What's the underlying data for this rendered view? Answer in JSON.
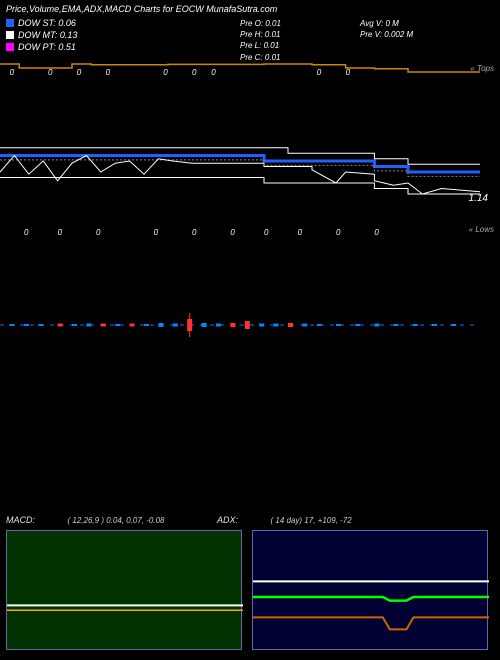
{
  "title": "Price,Volume,EMA,ADX,MACD Charts for EOCW MunafaSutra.com",
  "colors": {
    "bg": "#000000",
    "text": "#ffffff",
    "dow_st": "#2060ff",
    "dow_mt": "#ffffff",
    "dow_pt": "#ff00ff",
    "orange_line": "#cc8800",
    "price_line": "#ffffff",
    "dotted": "#888888",
    "candle_up": "#0088ff",
    "candle_dn": "#ff3333",
    "macd_bg": "#003300",
    "adx_bg": "#000033",
    "panel_border": "#6666aa",
    "macd_line1": "#ffffff",
    "macd_line2": "#ffaa00",
    "adx_green": "#00ff00",
    "adx_white": "#ffffff",
    "adx_orange": "#cc6600"
  },
  "legend": {
    "st": {
      "label": "DOW ST:",
      "value": "0.06"
    },
    "mt": {
      "label": "DOW MT:",
      "value": "0.13"
    },
    "pt": {
      "label": "DOW PT:",
      "value": "0.51"
    }
  },
  "stats_mid": {
    "l1": "Pre   O: 0.01",
    "l2": "Pre   H: 0.01",
    "l3": "Pre   L: 0.01",
    "l4": "Pre   C: 0.01"
  },
  "stats_right": {
    "l1": "Avg V: 0  M",
    "l2": "Pre   V: 0.002  M"
  },
  "axis_labels": {
    "top": "« Tops",
    "bottom": "« Lows"
  },
  "price_marker": "1.14",
  "orange_line": {
    "y_start": 0.08,
    "y_end": 0.35,
    "points": [
      [
        0.0,
        0.1
      ],
      [
        0.04,
        0.1
      ],
      [
        0.04,
        0.2
      ],
      [
        0.15,
        0.2
      ],
      [
        0.15,
        0.1
      ],
      [
        0.19,
        0.1
      ],
      [
        0.19,
        0.12
      ],
      [
        0.35,
        0.12
      ],
      [
        0.35,
        0.11
      ],
      [
        0.55,
        0.11
      ],
      [
        0.55,
        0.1
      ],
      [
        0.65,
        0.1
      ],
      [
        0.65,
        0.12
      ],
      [
        0.72,
        0.12
      ],
      [
        0.72,
        0.2
      ],
      [
        0.78,
        0.2
      ],
      [
        0.78,
        0.22
      ],
      [
        0.85,
        0.22
      ],
      [
        0.85,
        0.3
      ],
      [
        1.0,
        0.3
      ]
    ]
  },
  "main_lines": {
    "white_top": [
      [
        0.0,
        0.48
      ],
      [
        0.6,
        0.48
      ],
      [
        0.6,
        0.53
      ],
      [
        0.78,
        0.53
      ],
      [
        0.78,
        0.58
      ],
      [
        0.85,
        0.58
      ],
      [
        0.85,
        0.63
      ],
      [
        1.0,
        0.63
      ]
    ],
    "blue": [
      [
        0.0,
        0.55
      ],
      [
        0.55,
        0.55
      ],
      [
        0.55,
        0.6
      ],
      [
        0.78,
        0.6
      ],
      [
        0.78,
        0.65
      ],
      [
        0.85,
        0.65
      ],
      [
        0.85,
        0.7
      ],
      [
        1.0,
        0.7
      ]
    ],
    "jagged": [
      [
        0.0,
        0.7
      ],
      [
        0.03,
        0.55
      ],
      [
        0.06,
        0.72
      ],
      [
        0.09,
        0.6
      ],
      [
        0.12,
        0.78
      ],
      [
        0.15,
        0.62
      ],
      [
        0.18,
        0.55
      ],
      [
        0.21,
        0.7
      ],
      [
        0.24,
        0.62
      ],
      [
        0.27,
        0.6
      ],
      [
        0.3,
        0.72
      ],
      [
        0.33,
        0.58
      ],
      [
        0.36,
        0.6
      ],
      [
        0.4,
        0.62
      ],
      [
        0.5,
        0.62
      ],
      [
        0.55,
        0.62
      ],
      [
        0.55,
        0.65
      ],
      [
        0.65,
        0.65
      ],
      [
        0.65,
        0.68
      ],
      [
        0.7,
        0.8
      ],
      [
        0.72,
        0.7
      ],
      [
        0.78,
        0.72
      ],
      [
        0.78,
        0.78
      ],
      [
        0.82,
        0.82
      ],
      [
        0.85,
        0.8
      ],
      [
        0.88,
        0.9
      ],
      [
        0.92,
        0.85
      ],
      [
        1.0,
        0.88
      ]
    ],
    "white_bot": [
      [
        0.0,
        0.75
      ],
      [
        0.55,
        0.75
      ],
      [
        0.55,
        0.8
      ],
      [
        0.78,
        0.8
      ],
      [
        0.78,
        0.85
      ],
      [
        0.85,
        0.85
      ],
      [
        0.85,
        0.9
      ],
      [
        1.0,
        0.9
      ]
    ]
  },
  "zeros_top": [
    0.02,
    0.1,
    0.16,
    0.22,
    0.34,
    0.4,
    0.44,
    0.66,
    0.72
  ],
  "zeros_bot": [
    0.05,
    0.12,
    0.2,
    0.32,
    0.4,
    0.48,
    0.55,
    0.62,
    0.7,
    0.78
  ],
  "candles": [
    {
      "x": 0.02,
      "h": 2,
      "c": "b"
    },
    {
      "x": 0.05,
      "h": 2,
      "c": "b"
    },
    {
      "x": 0.08,
      "h": 2,
      "c": "b"
    },
    {
      "x": 0.12,
      "h": 3,
      "c": "r"
    },
    {
      "x": 0.15,
      "h": 2,
      "c": "b"
    },
    {
      "x": 0.18,
      "h": 3,
      "c": "b"
    },
    {
      "x": 0.21,
      "h": 3,
      "c": "r"
    },
    {
      "x": 0.24,
      "h": 2,
      "c": "b"
    },
    {
      "x": 0.27,
      "h": 3,
      "c": "r"
    },
    {
      "x": 0.3,
      "h": 2,
      "c": "b"
    },
    {
      "x": 0.33,
      "h": 4,
      "c": "b"
    },
    {
      "x": 0.36,
      "h": 3,
      "c": "b"
    },
    {
      "x": 0.39,
      "h": 12,
      "c": "r",
      "wick": 6
    },
    {
      "x": 0.42,
      "h": 4,
      "c": "b"
    },
    {
      "x": 0.45,
      "h": 3,
      "c": "b"
    },
    {
      "x": 0.48,
      "h": 4,
      "c": "r"
    },
    {
      "x": 0.51,
      "h": 8,
      "c": "r"
    },
    {
      "x": 0.54,
      "h": 3,
      "c": "b"
    },
    {
      "x": 0.57,
      "h": 3,
      "c": "b"
    },
    {
      "x": 0.6,
      "h": 4,
      "c": "r"
    },
    {
      "x": 0.63,
      "h": 3,
      "c": "b"
    },
    {
      "x": 0.66,
      "h": 2,
      "c": "b"
    },
    {
      "x": 0.7,
      "h": 2,
      "c": "b"
    },
    {
      "x": 0.74,
      "h": 2,
      "c": "b"
    },
    {
      "x": 0.78,
      "h": 3,
      "c": "b"
    },
    {
      "x": 0.82,
      "h": 2,
      "c": "b"
    },
    {
      "x": 0.86,
      "h": 2,
      "c": "b"
    },
    {
      "x": 0.9,
      "h": 2,
      "c": "b"
    },
    {
      "x": 0.94,
      "h": 2,
      "c": "b"
    }
  ],
  "macd": {
    "title": "MACD:",
    "params": "( 12,26,9 ) 0.04, 0.07, -0.08",
    "line1_y": 0.62,
    "line2_y": 0.66
  },
  "adx": {
    "title": "ADX:",
    "params": "( 14   day) 17, +109, -72",
    "white": [
      [
        0,
        0.42
      ],
      [
        1,
        0.42
      ]
    ],
    "green": [
      [
        0,
        0.55
      ],
      [
        0.55,
        0.55
      ],
      [
        0.58,
        0.58
      ],
      [
        0.65,
        0.58
      ],
      [
        0.68,
        0.55
      ],
      [
        1,
        0.55
      ]
    ],
    "orange": [
      [
        0,
        0.72
      ],
      [
        0.55,
        0.72
      ],
      [
        0.58,
        0.82
      ],
      [
        0.65,
        0.82
      ],
      [
        0.68,
        0.72
      ],
      [
        1,
        0.72
      ]
    ]
  }
}
